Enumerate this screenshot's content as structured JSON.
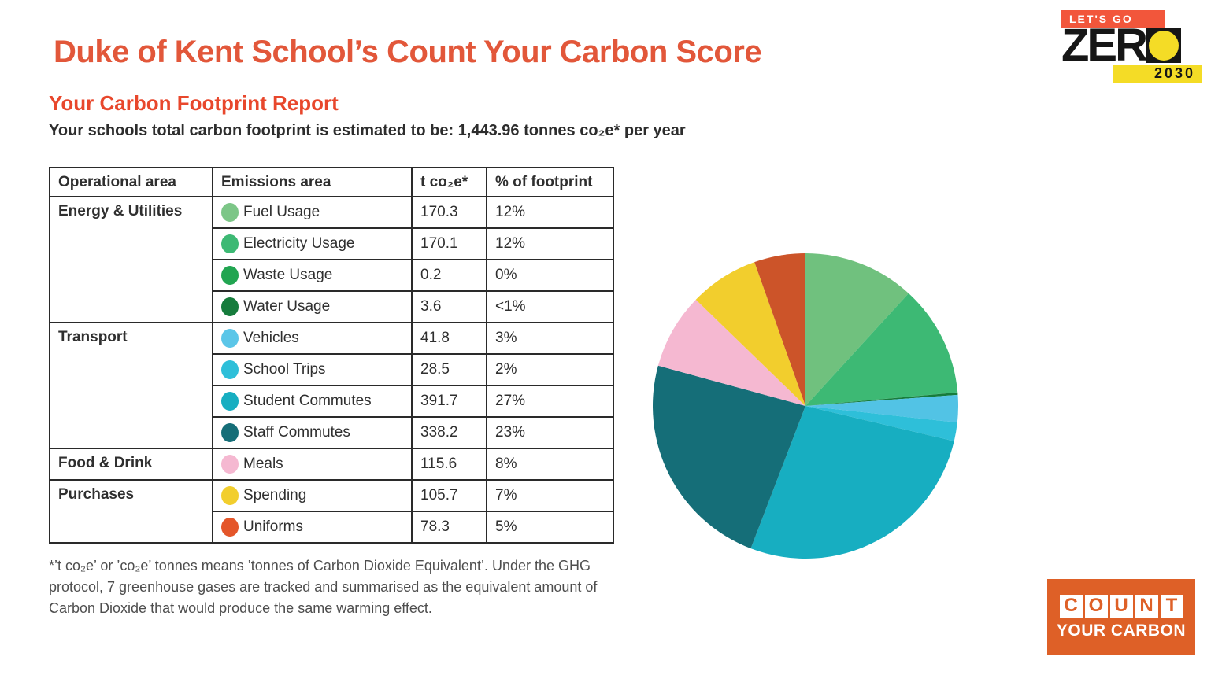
{
  "page": {
    "title": "Duke of Kent School’s Count Your Carbon Score",
    "report_heading": "Your Carbon Footprint Report",
    "total_line": "Your schools total carbon footprint is estimated to be: 1,443.96 tonnes co₂e* per year",
    "footnote": "*’t co₂e’ or ’co₂e’ tonnes means ’tonnes of Carbon Dioxide Equivalent’. Under the GHG protocol, 7 greenhouse gases are tracked and summarised as the equivalent amount of Carbon Dioxide that would produce the same warming effect."
  },
  "colors": {
    "title_orange": "#E2573A",
    "heading_orange": "#E8472C",
    "text_dark": "#2D2D2D",
    "table_border": "#2A2A2A"
  },
  "table": {
    "headers": [
      "Operational area",
      "Emissions area",
      "t co₂e*",
      "% of footprint"
    ],
    "rows": [
      {
        "group": "Energy & Utilities",
        "label": "Fuel Usage",
        "color": "#7CC687",
        "t_co2e": "170.3",
        "pct": "12%"
      },
      {
        "label": "Electricity Usage",
        "color": "#3DB974",
        "t_co2e": "170.1",
        "pct": "12%"
      },
      {
        "label": "Waste Usage",
        "color": "#21A551",
        "t_co2e": "0.2",
        "pct": "0%"
      },
      {
        "label": "Water Usage",
        "color": "#167C3C",
        "t_co2e": "3.6",
        "pct": "<1%"
      },
      {
        "group": "Transport",
        "label": "Vehicles",
        "color": "#5BC6E8",
        "t_co2e": "41.8",
        "pct": "3%"
      },
      {
        "label": "School Trips",
        "color": "#2EBFD9",
        "t_co2e": "28.5",
        "pct": "2%"
      },
      {
        "label": "Student Commutes",
        "color": "#17AEC1",
        "t_co2e": "391.7",
        "pct": "27%"
      },
      {
        "label": "Staff Commutes",
        "color": "#156E78",
        "t_co2e": "338.2",
        "pct": "23%"
      },
      {
        "group": "Food & Drink",
        "label": "Meals",
        "color": "#F5B8D1",
        "t_co2e": "115.6",
        "pct": "8%"
      },
      {
        "group": "Purchases",
        "label": "Spending",
        "color": "#F2CE2D",
        "t_co2e": "105.7",
        "pct": "7%"
      },
      {
        "label": "Uniforms",
        "color": "#E4562A",
        "t_co2e": "78.3",
        "pct": "5%"
      }
    ]
  },
  "chart_data": {
    "type": "pie",
    "title": "",
    "categories": [
      "Fuel Usage",
      "Electricity Usage",
      "Waste Usage",
      "Water Usage",
      "Vehicles",
      "School Trips",
      "Student Commutes",
      "Staff Commutes",
      "Meals",
      "Spending",
      "Uniforms"
    ],
    "values": [
      170.3,
      170.1,
      0.2,
      3.6,
      41.8,
      28.5,
      391.7,
      338.2,
      115.6,
      105.7,
      78.3
    ],
    "percent_labels": [
      "12%",
      "12%",
      "0%",
      "<1%",
      "3%",
      "2%",
      "27%",
      "23%",
      "8%",
      "7%",
      "5%"
    ],
    "colors": [
      "#70C17E",
      "#3DB974",
      "#21A551",
      "#167C3C",
      "#52C3E5",
      "#2EBFD9",
      "#17AEC1",
      "#156E78",
      "#F5B8D1",
      "#F2CE2D",
      "#CC5429"
    ],
    "total": 1443.96,
    "start_angle": "top",
    "direction": "clockwise",
    "legend_position": "none (table at left acts as legend)"
  },
  "logo_lets_go_zero": {
    "line1": "LET'S GO",
    "zer_text": "ZER",
    "year": "2030",
    "orange": "#F2563B",
    "yellow": "#F4DC26",
    "black": "#161616"
  },
  "logo_count_your_carbon": {
    "letters": [
      "C",
      "O",
      "U",
      "N",
      "T"
    ],
    "subtext": "YOUR CARBON",
    "orange": "#DE6027"
  }
}
